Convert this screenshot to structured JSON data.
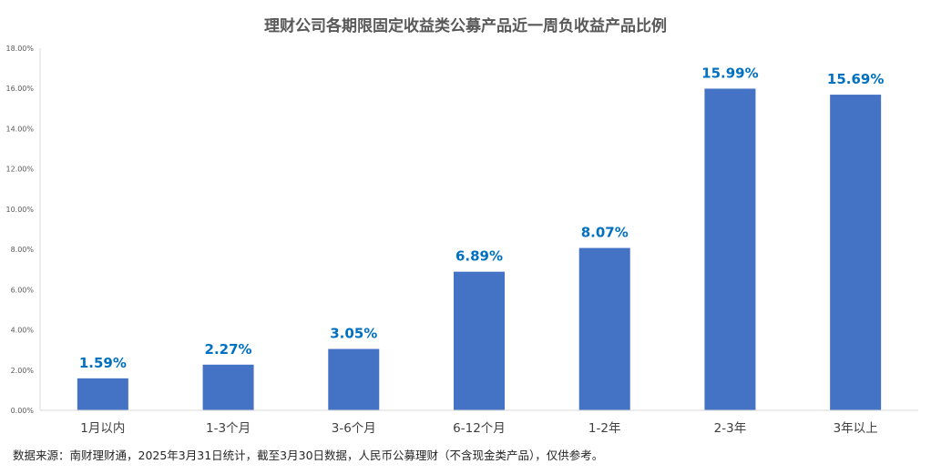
{
  "chart_data": {
    "type": "bar",
    "title": "理财公司各期限固定收益类公募产品近一周负收益产品比例",
    "categories": [
      "1月以内",
      "1-3个月",
      "3-6个月",
      "6-12个月",
      "1-2年",
      "2-3年",
      "3年以上"
    ],
    "values": [
      1.59,
      2.27,
      3.05,
      6.89,
      8.07,
      15.99,
      15.69
    ],
    "data_labels": [
      "1.59%",
      "2.27%",
      "3.05%",
      "6.89%",
      "8.07%",
      "15.99%",
      "15.69%"
    ],
    "ylim": [
      0,
      18
    ],
    "yticks": [
      0,
      2,
      4,
      6,
      8,
      10,
      12,
      14,
      16,
      18
    ],
    "ytick_labels": [
      "0.00%",
      "2.00%",
      "4.00%",
      "6.00%",
      "8.00%",
      "10.00%",
      "12.00%",
      "14.00%",
      "16.00%",
      "18.00%"
    ],
    "xlabel": "",
    "ylabel": "",
    "grid": false,
    "colors": {
      "bar": "#4472C4",
      "data_label": "#0070C0",
      "axis": "#D9D9D9",
      "tick_text": "#595959"
    }
  },
  "footnote": "数据来源：南财理财通，2025年3月31日统计，截至3月30日数据，人民币公募理财（不含现金类产品），仅供参考。"
}
